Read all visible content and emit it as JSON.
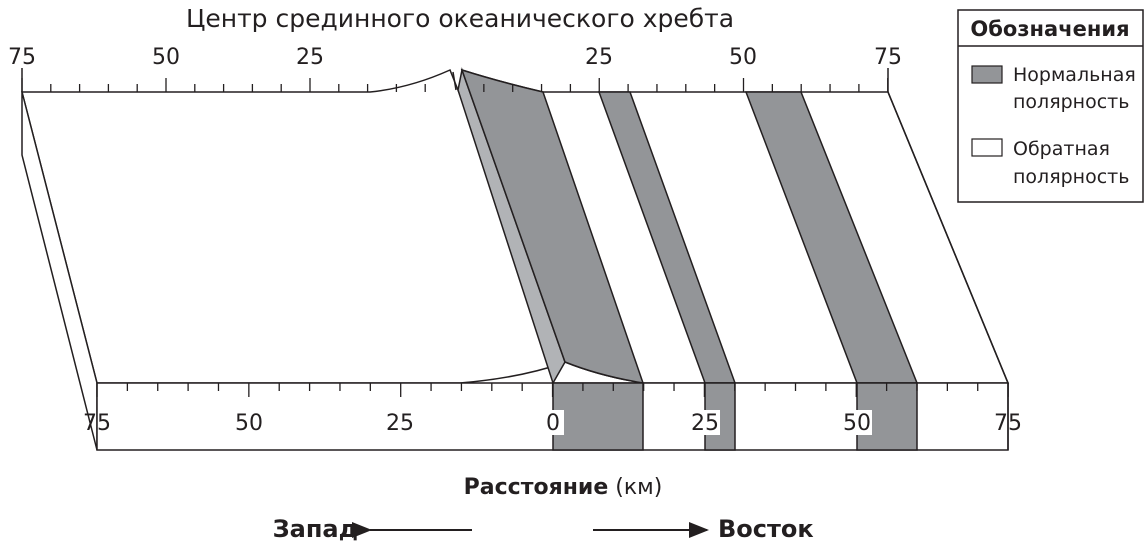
{
  "title": "Центр срединного океанического хребта",
  "top_axis": {
    "left_labels": [
      "75",
      "50",
      "25"
    ],
    "right_labels": [
      "25",
      "50",
      "75"
    ]
  },
  "bottom_axis": {
    "labels": [
      "75",
      "50",
      "25",
      "0",
      "25",
      "50",
      "75"
    ]
  },
  "axis_title": {
    "bold": "Расстояние",
    "unit": " (км)"
  },
  "legend": {
    "title": "Обозначения",
    "items": [
      {
        "line1": "Нормальная",
        "line2": "полярность",
        "color": "#939598"
      },
      {
        "line1": "Обратная",
        "line2": "полярность",
        "color": "#ffffff"
      }
    ]
  },
  "directions": {
    "west": "Запад",
    "east": "Восток"
  },
  "colors": {
    "normal": "#939598",
    "reverse": "#ffffff",
    "ridge_face": "#b1b3b6",
    "line": "#231f20"
  }
}
